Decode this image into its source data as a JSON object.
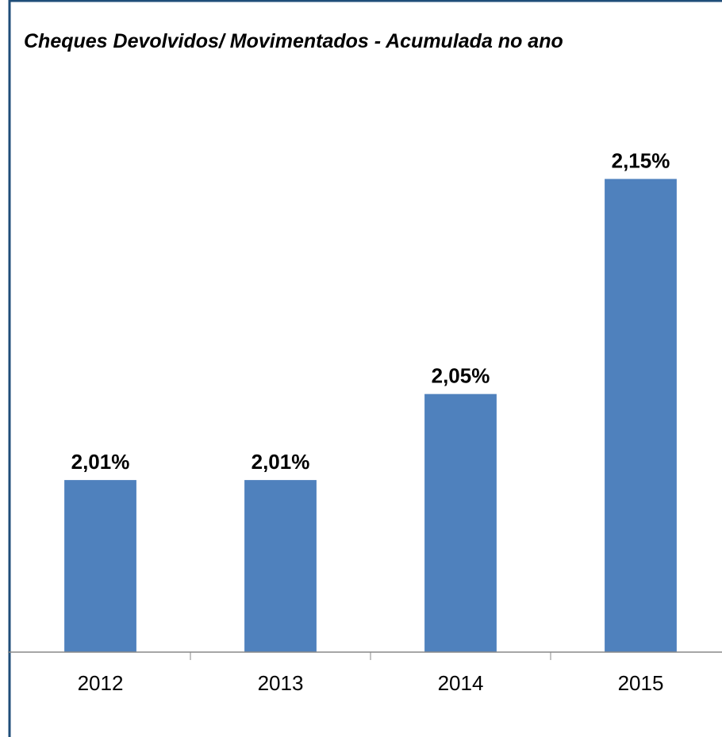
{
  "chart_data": {
    "type": "bar",
    "title": "Cheques Devolvidos/ Movimentados - Acumulada no ano",
    "categories": [
      "2012",
      "2013",
      "2014",
      "2015"
    ],
    "values": [
      2.01,
      2.01,
      2.05,
      2.15
    ],
    "value_labels": [
      "2,01%",
      "2,01%",
      "2,05%",
      "2,15%"
    ],
    "color": "#4f81bd",
    "ylim": [
      1.93,
      2.2
    ]
  }
}
